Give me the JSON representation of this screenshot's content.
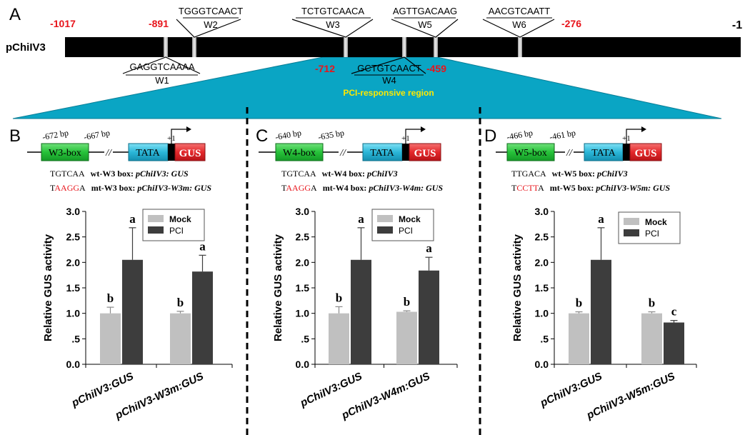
{
  "panel_a": {
    "letter": "A",
    "promoter_label": "pChiIV3",
    "positions": [
      "-1017",
      "-891",
      "-712",
      "-459",
      "-276",
      "-1"
    ],
    "boxes": [
      {
        "name": "W1",
        "seq": "GAGGTCAAAA"
      },
      {
        "name": "W2",
        "seq": "TGGGTCAACT"
      },
      {
        "name": "W3",
        "seq": "TCTGTCAACA"
      },
      {
        "name": "W4",
        "seq": "GCTGTCAACT"
      },
      {
        "name": "W5",
        "seq": "AGTTGACAAG"
      },
      {
        "name": "W6",
        "seq": "AACGTCAATT"
      }
    ],
    "region_label": "PCI-responsive region",
    "colors": {
      "position_red": "#e8141b",
      "region_fill": "#0aa5c4",
      "region_text": "#ffe800",
      "box_marker": "#c8c8c8"
    }
  },
  "panels": [
    {
      "letter": "B",
      "box_label": "W3-box",
      "pos_start": "-672 bp",
      "pos_end": "-667 bp",
      "tata": "TATA",
      "gus": "GUS",
      "plus1": "+1",
      "wt_seq": "TGTCAA",
      "wt_label": "wt-W3 box: ",
      "wt_construct": "pChiIV3: GUS",
      "mt_seq_head": "T",
      "mt_seq_mut": "AAGG",
      "mt_seq_tail": "A",
      "mt_label": "mt-W3 box: ",
      "mt_construct": "pChiIV3-W3m: GUS",
      "chart_ylabel": "Relative GUS activity",
      "categories": [
        "pChiIV3:GUS",
        "pChiIV3-W3m:GUS"
      ],
      "letters_mock": [
        "b",
        "b"
      ],
      "letters_pci": [
        "a",
        "a"
      ]
    },
    {
      "letter": "C",
      "box_label": "W4-box",
      "pos_start": "-640 bp",
      "pos_end": "-635 bp",
      "tata": "TATA",
      "gus": "GUS",
      "plus1": "+1",
      "wt_seq": "TGTCAA",
      "wt_label": "wt-W4 box: ",
      "wt_construct": "pChiIV3",
      "mt_seq_head": "T",
      "mt_seq_mut": "AAGG",
      "mt_seq_tail": "A",
      "mt_label": "mt-W4 box: ",
      "mt_construct": "pChiIV3-W4m: GUS",
      "chart_ylabel": "Relative GUS activity",
      "categories": [
        "pChiIV3:GUS",
        "pChiIV3-W4m:GUS"
      ],
      "letters_mock": [
        "b",
        "b"
      ],
      "letters_pci": [
        "a",
        "a"
      ]
    },
    {
      "letter": "D",
      "box_label": "W5-box",
      "pos_start": "-466 bp",
      "pos_end": "-461 bp",
      "tata": "TATA",
      "gus": "GUS",
      "plus1": "+1",
      "wt_seq": "TTGACA",
      "wt_label": "wt-W5 box: ",
      "wt_construct": "pChiIV3",
      "mt_seq_head": "T",
      "mt_seq_mut": "CCTT",
      "mt_seq_tail": "A",
      "mt_label": "mt-W5 box: ",
      "mt_construct": "pChiIV3-W5m: GUS",
      "chart_ylabel": "Relative GUS activity",
      "categories": [
        "pChiIV3:GUS",
        "pChiIV3-W5m:GUS"
      ],
      "letters_mock": [
        "b",
        "b"
      ],
      "letters_pci": [
        "a",
        "c"
      ]
    }
  ],
  "chart_data": [
    {
      "type": "bar",
      "title": "",
      "xlabel": "",
      "ylabel": "Relative GUS activity",
      "ylim": [
        0,
        3
      ],
      "yticks": [
        "0.0",
        ".5",
        "1.0",
        "1.5",
        "2.0",
        "2.5",
        "3.0"
      ],
      "categories": [
        "pChiIV3:GUS",
        "pChiIV3-W3m:GUS"
      ],
      "series": [
        {
          "name": "Mock",
          "values": [
            1.0,
            1.0
          ],
          "errors": [
            0.12,
            0.04
          ],
          "color": "#c0c0c0"
        },
        {
          "name": "PCI",
          "values": [
            2.05,
            1.82
          ],
          "errors": [
            0.63,
            0.32
          ],
          "color": "#3d3d3d"
        }
      ],
      "legend": "top-right"
    },
    {
      "type": "bar",
      "title": "",
      "xlabel": "",
      "ylabel": "Relative GUS activity",
      "ylim": [
        0,
        3
      ],
      "yticks": [
        "0.0",
        ".5",
        "1.0",
        "1.5",
        "2.0",
        "2.5",
        "3.0"
      ],
      "categories": [
        "pChiIV3:GUS",
        "pChiIV3-W4m:GUS"
      ],
      "series": [
        {
          "name": "Mock",
          "values": [
            1.0,
            1.03
          ],
          "errors": [
            0.13,
            0.02
          ],
          "color": "#c0c0c0"
        },
        {
          "name": "PCI",
          "values": [
            2.05,
            1.84
          ],
          "errors": [
            0.63,
            0.26
          ],
          "color": "#3d3d3d"
        }
      ],
      "legend": "top-right"
    },
    {
      "type": "bar",
      "title": "",
      "xlabel": "",
      "ylabel": "Relative GUS activity",
      "ylim": [
        0,
        3
      ],
      "yticks": [
        "0.0",
        ".5",
        "1.0",
        "1.5",
        "2.0",
        "2.5",
        "3.0"
      ],
      "categories": [
        "pChiIV3:GUS",
        "pChiIV3-W5m:GUS"
      ],
      "series": [
        {
          "name": "Mock",
          "values": [
            1.0,
            1.0
          ],
          "errors": [
            0.03,
            0.03
          ],
          "color": "#c0c0c0"
        },
        {
          "name": "PCI",
          "values": [
            2.05,
            0.82
          ],
          "errors": [
            0.63,
            0.04
          ],
          "color": "#3d3d3d"
        }
      ],
      "legend": "top-right"
    }
  ]
}
